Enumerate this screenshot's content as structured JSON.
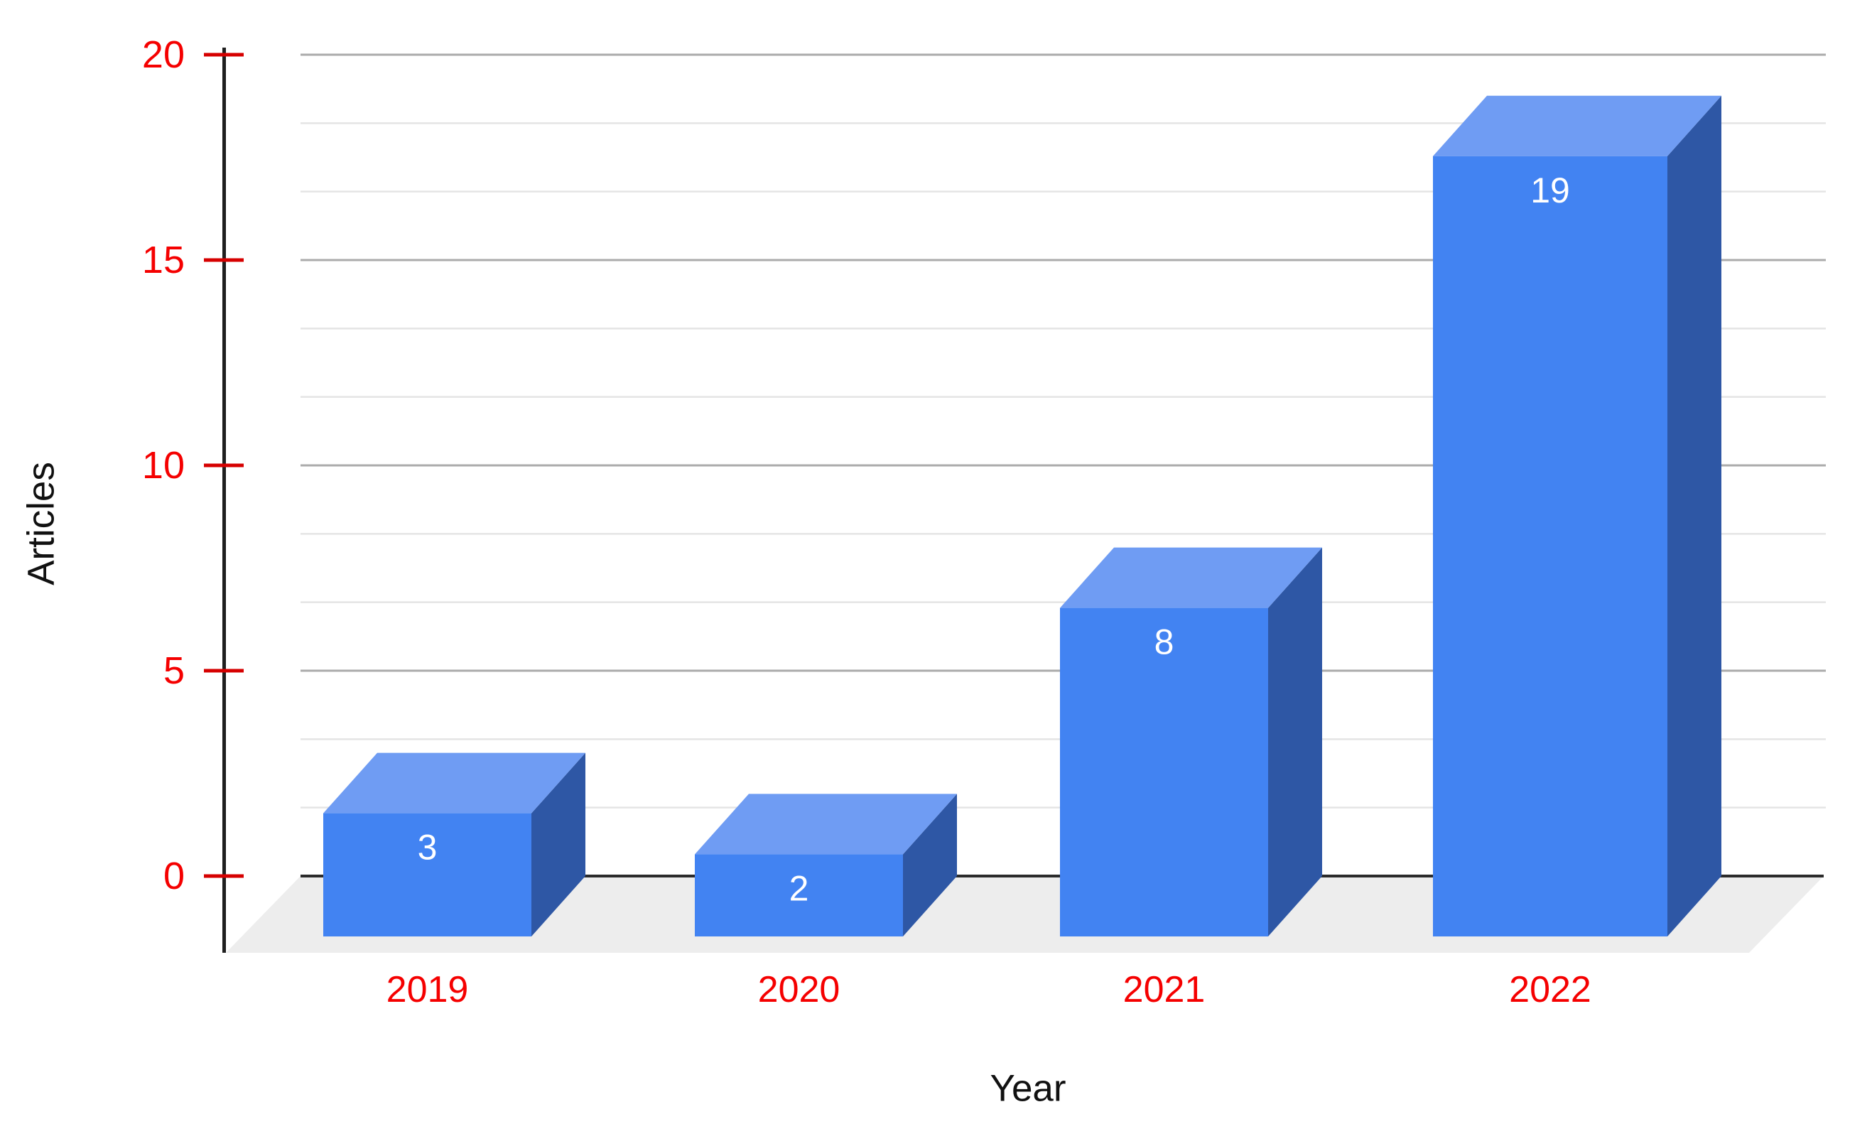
{
  "chart_data": {
    "type": "bar",
    "projection": "3d-column-oblique",
    "title": "",
    "xlabel": "Year",
    "ylabel": "Articles",
    "categories": [
      "2019",
      "2020",
      "2021",
      "2022"
    ],
    "series": [
      {
        "name": "Articles",
        "values": [
          3,
          2,
          8,
          19
        ]
      }
    ],
    "bar_value_labels": [
      "3",
      "2",
      "8",
      "19"
    ],
    "ylim": [
      0,
      20
    ],
    "yticks": [
      0,
      5,
      10,
      15,
      20
    ],
    "minor_gridlines_per_major": 3,
    "grid_on": true,
    "legend_position": "none",
    "colors": {
      "background": "#ffffff",
      "bar_front": "#4283f2",
      "bar_top": "#6f9cf3",
      "bar_side": "#2e57a5",
      "floor": "#ededed",
      "grid_minor": "#e4e4e4",
      "grid_major": "#ababab",
      "zero_baseline": "#2b2b2b",
      "axis_line": "#1f1f1f",
      "tick_mark_red": "#d60000",
      "tick_label_red": "#f50000",
      "axis_title_black": "#111111",
      "bar_value_label_white": "#ffffff"
    }
  }
}
